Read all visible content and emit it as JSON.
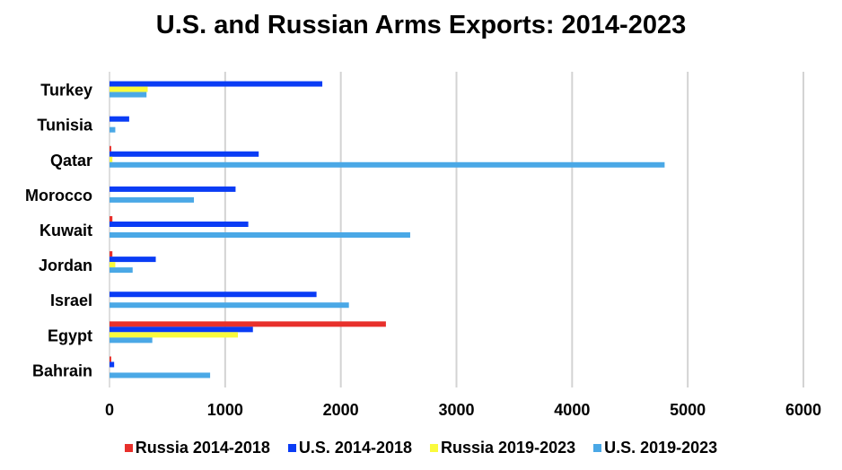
{
  "chart_data": {
    "type": "bar",
    "orientation": "horizontal",
    "title": "U.S. and Russian Arms Exports: 2014-2023",
    "categories": [
      "Turkey",
      "Tunisia",
      "Qatar",
      "Morocco",
      "Kuwait",
      "Jordan",
      "Israel",
      "Egypt",
      "Bahrain"
    ],
    "series": [
      {
        "name": "Russia 2014-2018",
        "color": "#e8302b",
        "values": [
          0,
          0,
          15,
          0,
          25,
          25,
          0,
          2390,
          15
        ]
      },
      {
        "name": "U.S. 2014-2018",
        "color": "#0a3cf5",
        "values": [
          1840,
          170,
          1290,
          1090,
          1200,
          400,
          1790,
          1240,
          40
        ]
      },
      {
        "name": "Russia 2019-2023",
        "color": "#fafa3c",
        "values": [
          330,
          0,
          25,
          0,
          0,
          50,
          0,
          1110,
          0
        ]
      },
      {
        "name": "U.S. 2019-2023",
        "color": "#4aa8e6",
        "values": [
          320,
          50,
          4800,
          730,
          2600,
          200,
          2070,
          370,
          870
        ]
      }
    ],
    "xlim": [
      0,
      6000
    ],
    "xticks": [
      "0",
      "1000",
      "2000",
      "3000",
      "4000",
      "5000",
      "6000"
    ],
    "grid": true,
    "legend_position": "bottom"
  }
}
